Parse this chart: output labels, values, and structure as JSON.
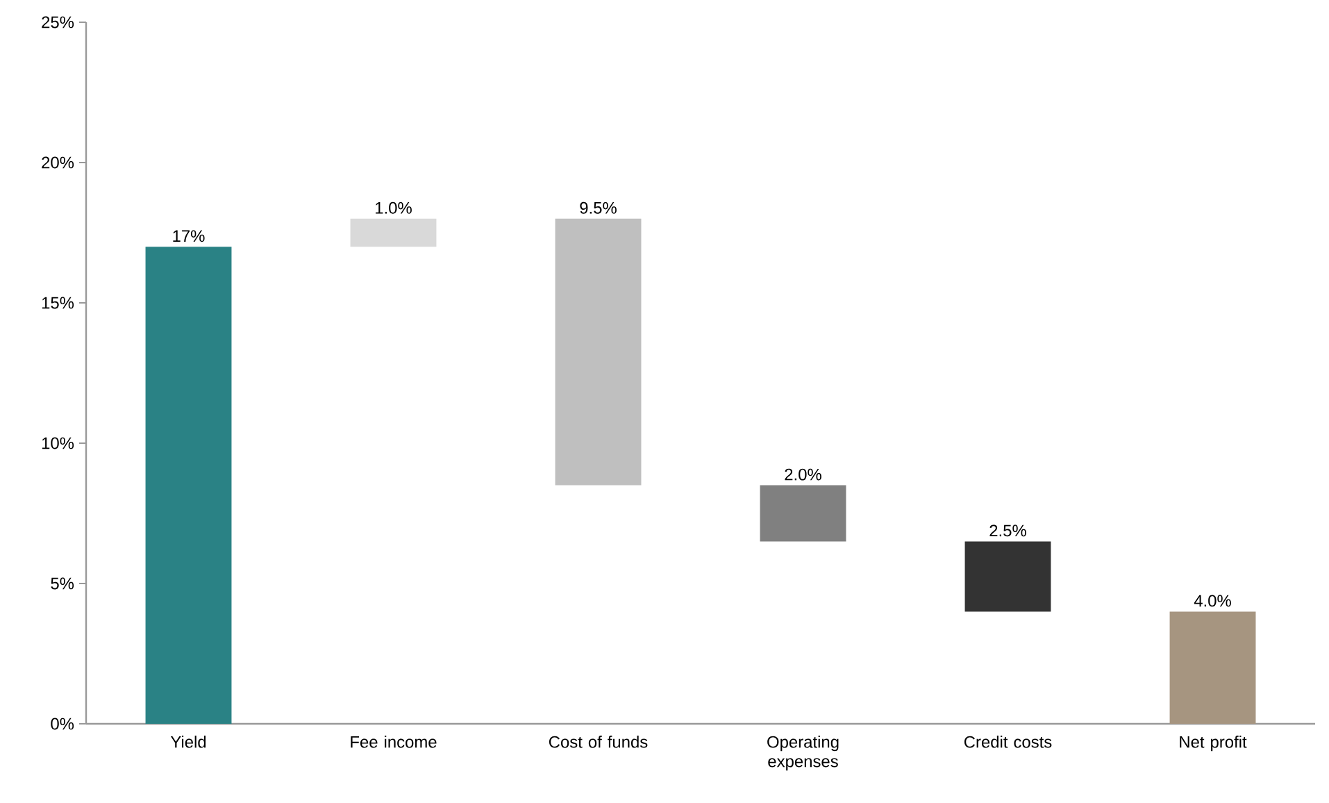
{
  "chart_data": {
    "type": "bar",
    "categories": [
      "Yield",
      "Fee income",
      "Cost of funds",
      "Operating expenses",
      "Credit costs",
      "Net profit"
    ],
    "values": [
      17,
      1.0,
      9.5,
      2.0,
      2.5,
      4.0
    ],
    "base": [
      0,
      17,
      8.5,
      6.5,
      4.0,
      0
    ],
    "colors": [
      "#2a8285",
      "#d9d9d9",
      "#bfbfbf",
      "#808080",
      "#333333",
      "#a69580"
    ],
    "value_labels": [
      "17%",
      "1.0%",
      "9.5%",
      "2.0%",
      "2.5%",
      "4.0%"
    ],
    "ylim": [
      0,
      25
    ],
    "yticks": [
      {
        "value": 0,
        "label": "0%"
      },
      {
        "value": 5,
        "label": "5%"
      },
      {
        "value": 10,
        "label": "10%"
      },
      {
        "value": 15,
        "label": "15%"
      },
      {
        "value": 20,
        "label": "20%"
      },
      {
        "value": 25,
        "label": "25%"
      }
    ],
    "grid": false
  }
}
